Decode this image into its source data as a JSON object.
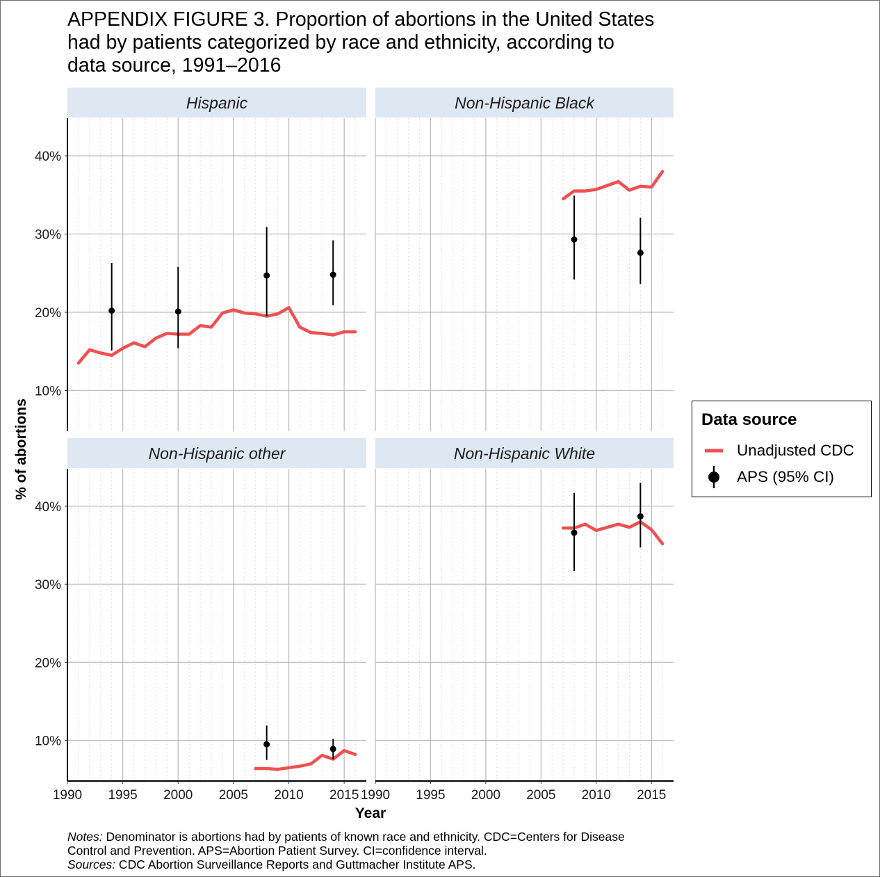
{
  "title_lines": [
    "APPENDIX FIGURE 3. Proportion of abortions in the United States",
    "had by patients categorized by race and ethnicity, according to",
    "data source, 1991–2016"
  ],
  "legend": {
    "title": "Data source",
    "items": [
      {
        "label": "Unadjusted CDC",
        "symbol": "line",
        "color": "#f05050"
      },
      {
        "label": "APS (95% CI)",
        "symbol": "pointrange",
        "color": "#000000"
      }
    ]
  },
  "notes": {
    "notes_label": "Notes:",
    "notes_line1": " Denominator is abortions had by patients of known race and ethnicity. CDC=Centers for Disease",
    "notes_line2": "Control and Prevention. APS=Abortion Patient Survey. CI=confidence interval.",
    "sources_label": "Sources:",
    "sources_text": " CDC Abortion Surveillance Reports and Guttmacher Institute APS."
  },
  "chart_data": {
    "type": "line",
    "layout": "facet 2x2",
    "xlabel": "Year",
    "ylabel": "% of abortions",
    "xlim": [
      1990,
      2017
    ],
    "ylim": [
      4.8,
      44.8
    ],
    "x_ticks": [
      "1990",
      "1995",
      "2000",
      "2005",
      "2010",
      "2015"
    ],
    "x_tick_values": [
      1990,
      1995,
      2000,
      2005,
      2010,
      2015
    ],
    "y_ticks": [
      "10%",
      "20%",
      "30%",
      "40%"
    ],
    "y_tick_values": [
      10,
      20,
      30,
      40
    ],
    "grid": true,
    "legend_position": "right",
    "colors": {
      "cdc": "#f05050",
      "aps": "#000000",
      "strip": "#dde8f2",
      "grid": "#bdbdbd",
      "minor_grid": "#d2d2d2"
    },
    "panels": [
      {
        "strip": "Hispanic",
        "cdc": {
          "name": "Unadjusted CDC",
          "x": [
            1991,
            1992,
            1993,
            1994,
            1995,
            1996,
            1997,
            1998,
            1999,
            2000,
            2001,
            2002,
            2003,
            2004,
            2005,
            2006,
            2007,
            2008,
            2009,
            2010,
            2011,
            2012,
            2013,
            2014,
            2015,
            2016
          ],
          "y": [
            13.5,
            15.2,
            14.8,
            14.5,
            15.4,
            16.1,
            15.6,
            16.7,
            17.3,
            17.2,
            17.2,
            18.3,
            18.1,
            19.9,
            20.3,
            19.9,
            19.8,
            19.5,
            19.8,
            20.6,
            18.1,
            17.4,
            17.3,
            17.1,
            17.5,
            17.5
          ]
        },
        "aps": {
          "name": "APS (95% CI)",
          "points": [
            {
              "x": 1994,
              "y": 20.2,
              "low": 15.1,
              "high": 26.3
            },
            {
              "x": 2000,
              "y": 20.1,
              "low": 15.4,
              "high": 25.8
            },
            {
              "x": 2008,
              "y": 24.7,
              "low": 19.5,
              "high": 30.9
            },
            {
              "x": 2014,
              "y": 24.8,
              "low": 20.9,
              "high": 29.2
            }
          ]
        }
      },
      {
        "strip": "Non-Hispanic Black",
        "cdc": {
          "name": "Unadjusted CDC",
          "x": [
            2007,
            2008,
            2009,
            2010,
            2011,
            2012,
            2013,
            2014,
            2015,
            2016
          ],
          "y": [
            34.5,
            35.5,
            35.5,
            35.7,
            36.2,
            36.7,
            35.6,
            36.1,
            36.0,
            38.0
          ]
        },
        "aps": {
          "name": "APS (95% CI)",
          "points": [
            {
              "x": 2008,
              "y": 29.3,
              "low": 24.2,
              "high": 34.9
            },
            {
              "x": 2014,
              "y": 27.6,
              "low": 23.6,
              "high": 32.1
            }
          ]
        }
      },
      {
        "strip": "Non-Hispanic other",
        "cdc": {
          "name": "Unadjusted CDC",
          "x": [
            2007,
            2008,
            2009,
            2010,
            2011,
            2012,
            2013,
            2014,
            2015,
            2016
          ],
          "y": [
            6.4,
            6.4,
            6.3,
            6.5,
            6.7,
            7.0,
            8.1,
            7.6,
            8.7,
            8.2
          ]
        },
        "aps": {
          "name": "APS (95% CI)",
          "points": [
            {
              "x": 2008,
              "y": 9.5,
              "low": 7.5,
              "high": 11.9
            },
            {
              "x": 2014,
              "y": 8.9,
              "low": 7.6,
              "high": 10.2
            }
          ]
        }
      },
      {
        "strip": "Non-Hispanic White",
        "cdc": {
          "name": "Unadjusted CDC",
          "x": [
            2007,
            2008,
            2009,
            2010,
            2011,
            2012,
            2013,
            2014,
            2015,
            2016
          ],
          "y": [
            37.2,
            37.2,
            37.7,
            36.9,
            37.3,
            37.7,
            37.3,
            38.0,
            37.0,
            35.2
          ]
        },
        "aps": {
          "name": "APS (95% CI)",
          "points": [
            {
              "x": 2008,
              "y": 36.6,
              "low": 31.7,
              "high": 41.7
            },
            {
              "x": 2014,
              "y": 38.7,
              "low": 34.7,
              "high": 43.0
            }
          ]
        }
      }
    ]
  }
}
